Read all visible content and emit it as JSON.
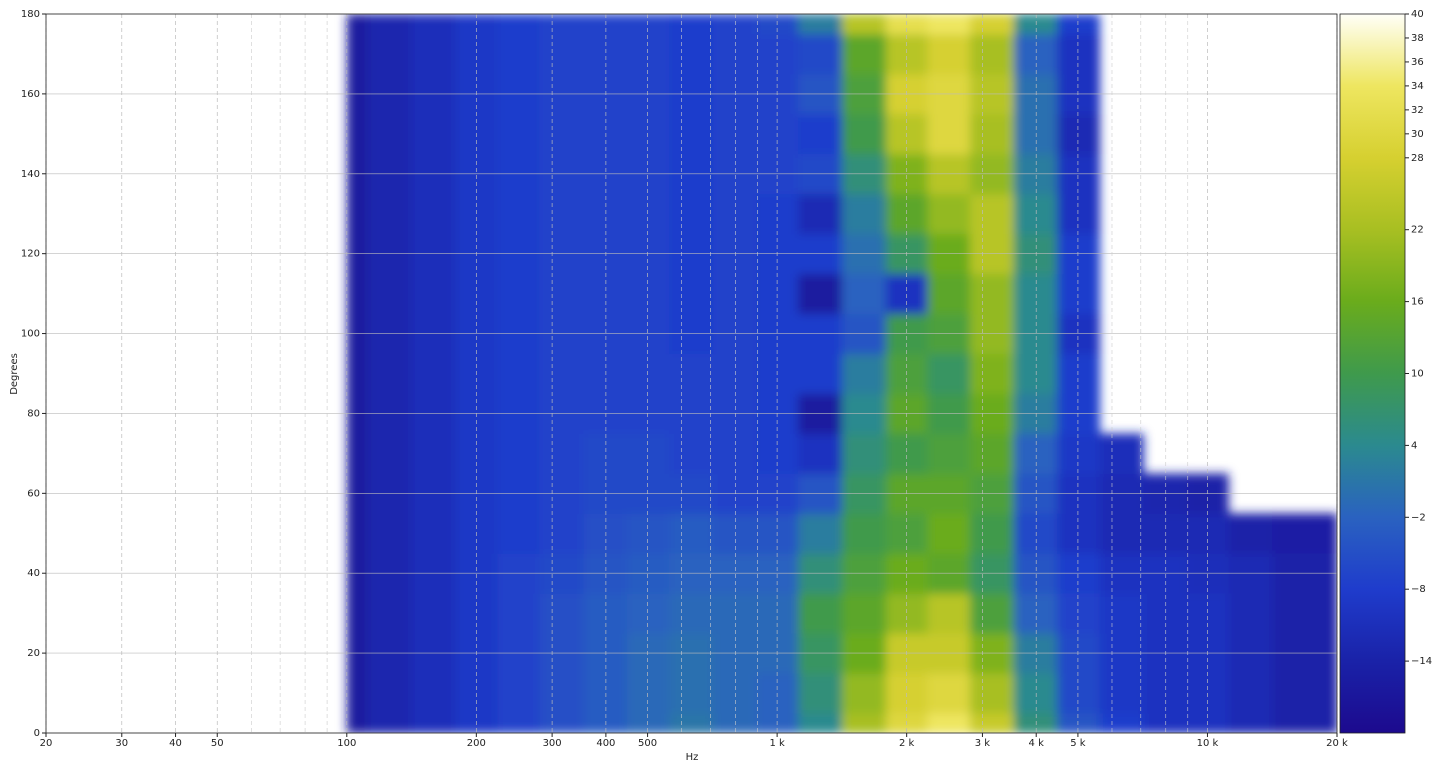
{
  "chart_data": {
    "type": "heatmap",
    "xlabel": "Hz",
    "ylabel": "Degrees",
    "xscale": "log",
    "xlim": [
      20,
      20000
    ],
    "ylim": [
      0,
      180
    ],
    "xticks": [
      20,
      30,
      40,
      50,
      100,
      200,
      300,
      400,
      500,
      {
        "value": 1000,
        "label": "1 k"
      },
      {
        "value": 2000,
        "label": "2 k"
      },
      {
        "value": 3000,
        "label": "3 k"
      },
      {
        "value": 4000,
        "label": "4 k"
      },
      {
        "value": 5000,
        "label": "5 k"
      },
      {
        "value": 10000,
        "label": "10 k"
      },
      {
        "value": 20000,
        "label": "20 k"
      }
    ],
    "xminorticks": [
      60,
      70,
      80,
      90,
      600,
      700,
      800,
      900,
      6000,
      7000,
      8000,
      9000
    ],
    "yticks": [
      0,
      20,
      40,
      60,
      80,
      100,
      120,
      140,
      160,
      180
    ],
    "grid": true,
    "clim": [
      -20,
      40
    ],
    "cticks": [
      40,
      38,
      36,
      34,
      32,
      30,
      28,
      22,
      16,
      10,
      4,
      {
        "value": -2,
        "label": "−2"
      },
      {
        "value": -8,
        "label": "−8"
      },
      {
        "value": -14,
        "label": "−14"
      }
    ],
    "colormap": [
      "#1c0a8e",
      "#1a22a8",
      "#1f3ccc",
      "#2a62c0",
      "#2b8a8f",
      "#3f9a4c",
      "#6aac1c",
      "#a8bf22",
      "#d6d030",
      "#eee660",
      "#fffff8"
    ],
    "x": [
      100,
      125,
      160,
      200,
      250,
      315,
      400,
      500,
      630,
      800,
      1000,
      1250,
      1600,
      2000,
      2500,
      3150,
      4000,
      5000,
      6300,
      8000,
      10000,
      12500,
      16000,
      20000
    ],
    "y": [
      0,
      10,
      20,
      30,
      40,
      50,
      60,
      70,
      80,
      90,
      100,
      110,
      120,
      130,
      140,
      150,
      160,
      170,
      180
    ],
    "z": [
      [
        -16,
        -13,
        -11,
        -9,
        -7,
        -5,
        -3,
        -1,
        1,
        -1,
        -2,
        4,
        22,
        30,
        34,
        26,
        6,
        -4,
        -8,
        -10,
        -10,
        -12,
        -14,
        -14
      ],
      [
        -16,
        -13,
        -11,
        -9,
        -7,
        -5,
        -3,
        -1,
        0,
        -1,
        -2,
        6,
        20,
        28,
        30,
        22,
        4,
        -6,
        -9,
        -10,
        -10,
        -12,
        -14,
        -14
      ],
      [
        -16,
        -13,
        -11,
        -9,
        -7,
        -5,
        -3,
        -1,
        0,
        -1,
        -1,
        8,
        16,
        26,
        26,
        18,
        2,
        -6,
        -9,
        -10,
        -10,
        -12,
        -14,
        -14
      ],
      [
        -16,
        -13,
        -11,
        -9,
        -7,
        -5,
        -3,
        -2,
        -1,
        -1,
        -1,
        10,
        14,
        20,
        24,
        12,
        -2,
        -7,
        -9,
        -10,
        -10,
        -12,
        -14,
        -14
      ],
      [
        -16,
        -13,
        -11,
        -9,
        -7,
        -6,
        -4,
        -3,
        -2,
        -2,
        -2,
        6,
        12,
        16,
        14,
        8,
        -4,
        -8,
        -10,
        -10,
        -11,
        -12,
        -14,
        -14
      ],
      [
        -16,
        -13,
        -11,
        -9,
        -8,
        -7,
        -5,
        -4,
        -3,
        -4,
        -4,
        2,
        10,
        12,
        16,
        10,
        -6,
        -10,
        -12,
        -12,
        -12,
        -14,
        -15,
        -15
      ],
      [
        -16,
        -13,
        -11,
        -9,
        -8,
        -7,
        -6,
        -6,
        -6,
        -7,
        -7,
        -4,
        8,
        14,
        14,
        12,
        -4,
        -10,
        -12,
        -13,
        -14,
        null,
        null,
        null
      ],
      [
        -16,
        -13,
        -11,
        -9,
        -8,
        -7,
        -6,
        -6,
        -7,
        -7,
        -8,
        -10,
        6,
        10,
        12,
        14,
        -2,
        -9,
        -11,
        null,
        null,
        null,
        null,
        null
      ],
      [
        -16,
        -13,
        -11,
        -9,
        -8,
        -7,
        -7,
        -7,
        -7,
        -7,
        -8,
        -16,
        4,
        14,
        10,
        16,
        2,
        -8,
        null,
        null,
        null,
        null,
        null,
        null
      ],
      [
        -16,
        -13,
        -11,
        -9,
        -8,
        -7,
        -7,
        -7,
        -7,
        -7,
        -8,
        -8,
        2,
        12,
        8,
        18,
        4,
        -8,
        null,
        null,
        null,
        null,
        null,
        null
      ],
      [
        -16,
        -13,
        -11,
        -9,
        -8,
        -7,
        -7,
        -7,
        -8,
        -7,
        -8,
        -8,
        -4,
        10,
        12,
        20,
        4,
        -10,
        null,
        null,
        null,
        null,
        null,
        null
      ],
      [
        -16,
        -13,
        -11,
        -9,
        -8,
        -7,
        -7,
        -7,
        -8,
        -7,
        -8,
        -16,
        -2,
        -10,
        14,
        20,
        4,
        -8,
        null,
        null,
        null,
        null,
        null,
        null
      ],
      [
        -16,
        -13,
        -11,
        -9,
        -8,
        -7,
        -7,
        -7,
        -8,
        -7,
        -8,
        -8,
        0,
        8,
        16,
        24,
        6,
        -8,
        null,
        null,
        null,
        null,
        null,
        null
      ],
      [
        -16,
        -13,
        -11,
        -9,
        -8,
        -7,
        -7,
        -7,
        -8,
        -7,
        -8,
        -12,
        2,
        14,
        20,
        24,
        4,
        -10,
        null,
        null,
        null,
        null,
        null,
        null
      ],
      [
        -16,
        -13,
        -11,
        -9,
        -8,
        -7,
        -7,
        -7,
        -8,
        -7,
        -7,
        -6,
        6,
        18,
        24,
        20,
        2,
        -10,
        null,
        null,
        null,
        null,
        null,
        null
      ],
      [
        -16,
        -13,
        -11,
        -9,
        -8,
        -7,
        -7,
        -7,
        -8,
        -7,
        -7,
        -8,
        10,
        24,
        30,
        22,
        0,
        -12,
        null,
        null,
        null,
        null,
        null,
        null
      ],
      [
        -16,
        -13,
        -11,
        -9,
        -8,
        -7,
        -7,
        -7,
        -8,
        -7,
        -7,
        -4,
        12,
        28,
        30,
        24,
        0,
        -10,
        null,
        null,
        null,
        null,
        null,
        null
      ],
      [
        -16,
        -13,
        -11,
        -9,
        -8,
        -7,
        -7,
        -7,
        -8,
        -7,
        -7,
        -6,
        14,
        24,
        28,
        22,
        -2,
        -10,
        null,
        null,
        null,
        null,
        null,
        null
      ],
      [
        -16,
        -13,
        -11,
        -9,
        -8,
        -7,
        -7,
        -7,
        -8,
        -7,
        -6,
        2,
        24,
        32,
        34,
        28,
        4,
        -8,
        null,
        null,
        null,
        null,
        null,
        null
      ]
    ]
  }
}
